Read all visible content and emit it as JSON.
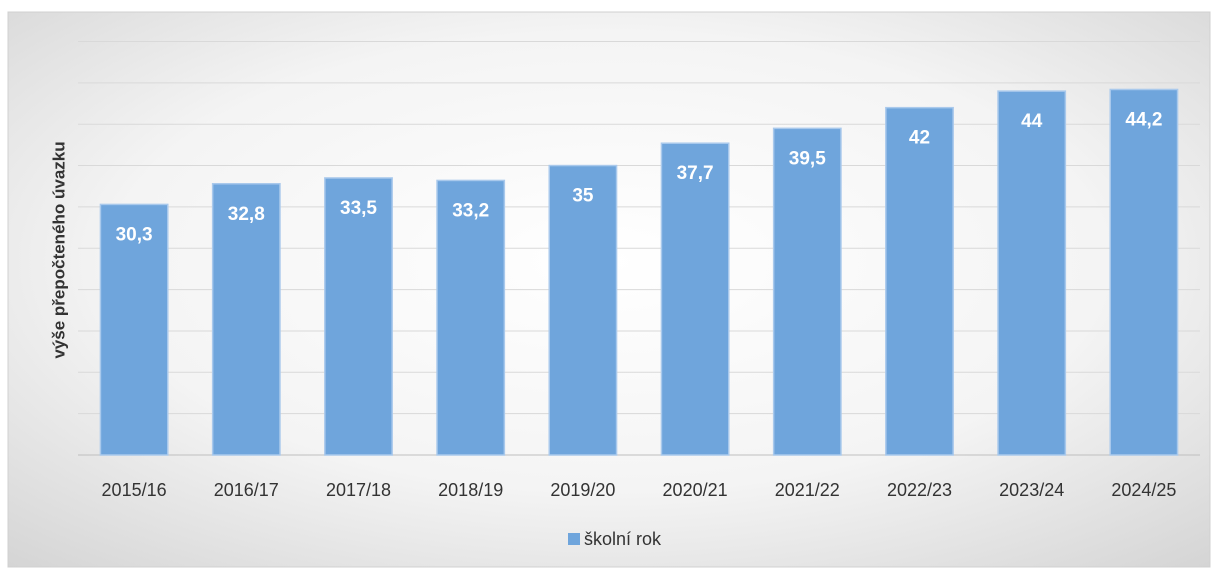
{
  "chart_data": {
    "type": "bar",
    "y_axis_label": "výše přepočteného úvazku",
    "categories": [
      "2015/16",
      "2016/17",
      "2017/18",
      "2018/19",
      "2019/20",
      "2020/21",
      "2021/22",
      "2022/23",
      "2023/24",
      "2024/25"
    ],
    "series": [
      {
        "name": "školní rok",
        "color": "#6fa5dc",
        "values": [
          30.3,
          32.8,
          33.5,
          33.2,
          35,
          37.7,
          39.5,
          42,
          44,
          44.2
        ],
        "value_labels": [
          "30,3",
          "32,8",
          "33,5",
          "33,2",
          "35",
          "37,7",
          "39,5",
          "42",
          "44",
          "44,2"
        ]
      }
    ],
    "ylim": [
      0,
      50
    ],
    "yticks": [
      0,
      5,
      10,
      15,
      20,
      25,
      30,
      35,
      40,
      45,
      50
    ],
    "grid": true,
    "legend": "bottom"
  }
}
